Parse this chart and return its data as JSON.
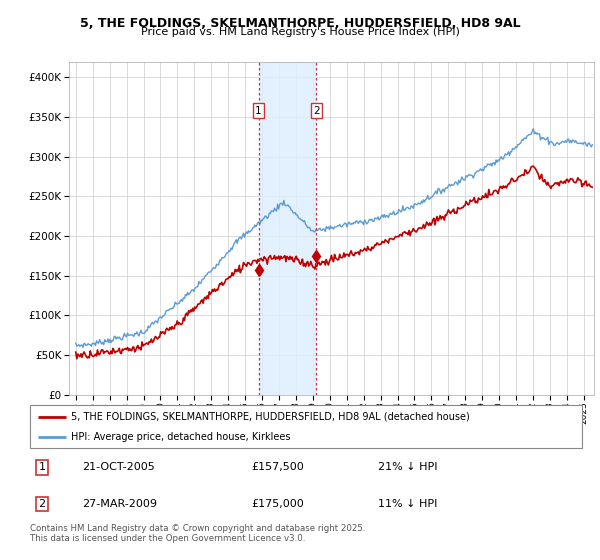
{
  "title_line1": "5, THE FOLDINGS, SKELMANTHORPE, HUDDERSFIELD, HD8 9AL",
  "title_line2": "Price paid vs. HM Land Registry's House Price Index (HPI)",
  "legend_label1": "5, THE FOLDINGS, SKELMANTHORPE, HUDDERSFIELD, HD8 9AL (detached house)",
  "legend_label2": "HPI: Average price, detached house, Kirklees",
  "transaction1_date": "21-OCT-2005",
  "transaction1_price": "£157,500",
  "transaction1_hpi": "21% ↓ HPI",
  "transaction2_date": "27-MAR-2009",
  "transaction2_price": "£175,000",
  "transaction2_hpi": "11% ↓ HPI",
  "footer": "Contains HM Land Registry data © Crown copyright and database right 2025.\nThis data is licensed under the Open Government Licence v3.0.",
  "hpi_color": "#5b9bd5",
  "price_color": "#c00000",
  "transaction_band_color": "#ddeeff",
  "ylim_min": 0,
  "ylim_max": 420000,
  "t1_year": 2005.79,
  "t2_year": 2009.21,
  "t1_price": 157500,
  "t2_price": 175000
}
